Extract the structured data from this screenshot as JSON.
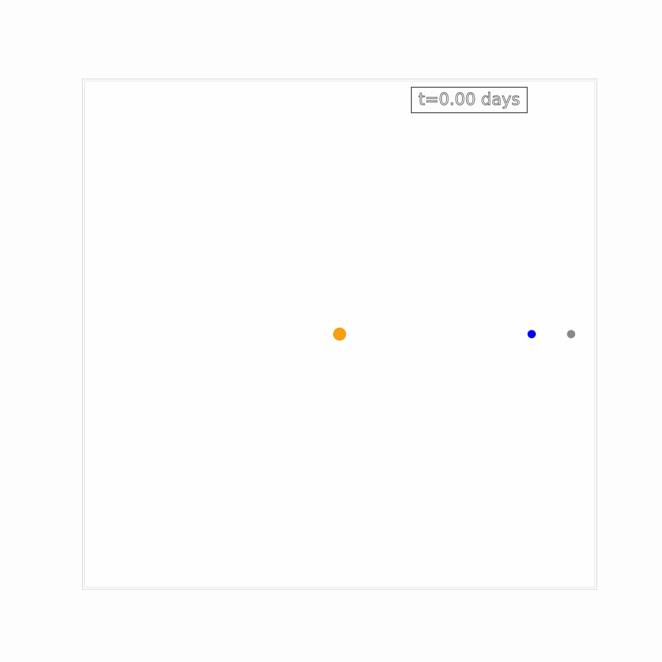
{
  "chart_data": {
    "type": "scatter",
    "title": "",
    "xlabel": "",
    "ylabel": "",
    "grid": false,
    "axes_visible": false,
    "xlim": [
      -1.5,
      1.5
    ],
    "ylim": [
      -1.5,
      1.5
    ],
    "time_label": "t=0.00 days",
    "bodies": [
      {
        "x": 0.0,
        "y": 0.0,
        "color": "#f5a00f",
        "marker": "sun"
      },
      {
        "x": 1.12,
        "y": 0.0,
        "color": "#0000ee",
        "marker": "planet"
      },
      {
        "x": 1.35,
        "y": 0.0,
        "color": "#888888",
        "marker": "moon"
      }
    ]
  }
}
